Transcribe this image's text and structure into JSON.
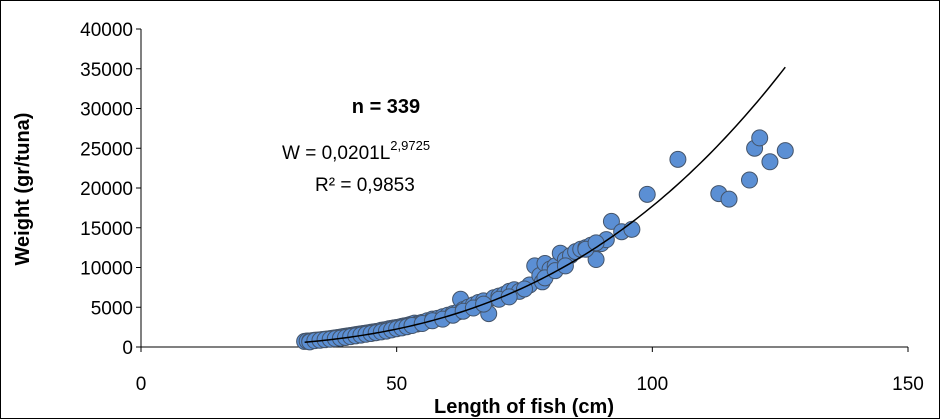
{
  "chart_data": {
    "type": "scatter",
    "xlabel": "Length of fish (cm)",
    "ylabel": "Weight (gr/tuna)",
    "xlim": [
      0,
      150
    ],
    "ylim": [
      0,
      40000
    ],
    "x_ticks": [
      "0",
      "50",
      "100",
      "150"
    ],
    "y_ticks": [
      "0",
      "5000",
      "10000",
      "15000",
      "20000",
      "25000",
      "30000",
      "35000",
      "40000"
    ],
    "grid": false,
    "legend": "none",
    "marker_color": "#5b8fd4",
    "marker_edge_color": "#44546a",
    "trendline": {
      "type": "power",
      "a": 0.0201,
      "b": 2.9725,
      "x_range": [
        32,
        126
      ],
      "color": "#000000"
    },
    "annotations": {
      "n_text": "n = 339",
      "equation_main": "W = 0,0201L",
      "equation_exponent": "2,9725",
      "r_squared": "R² = 0,9853"
    },
    "points": [
      [
        32,
        700
      ],
      [
        32.5,
        750
      ],
      [
        33,
        760
      ],
      [
        33.5,
        800
      ],
      [
        34,
        850
      ],
      [
        34.5,
        870
      ],
      [
        35,
        900
      ],
      [
        35.5,
        950
      ],
      [
        36,
        980
      ],
      [
        36.5,
        1000
      ],
      [
        37,
        1050
      ],
      [
        37.5,
        1100
      ],
      [
        38,
        1150
      ],
      [
        38.5,
        1200
      ],
      [
        39,
        1250
      ],
      [
        39.5,
        1300
      ],
      [
        40,
        1350
      ],
      [
        40.5,
        1400
      ],
      [
        41,
        1450
      ],
      [
        41.5,
        1500
      ],
      [
        42,
        1550
      ],
      [
        42.5,
        1600
      ],
      [
        43,
        1650
      ],
      [
        43.5,
        1700
      ],
      [
        44,
        1750
      ],
      [
        44.5,
        1800
      ],
      [
        45,
        1850
      ],
      [
        45.5,
        1900
      ],
      [
        46,
        1950
      ],
      [
        46.5,
        2000
      ],
      [
        47,
        2100
      ],
      [
        47.5,
        2150
      ],
      [
        48,
        2200
      ],
      [
        48.5,
        2300
      ],
      [
        49,
        2350
      ],
      [
        49.5,
        2400
      ],
      [
        50,
        2450
      ],
      [
        50.5,
        2500
      ],
      [
        51,
        2600
      ],
      [
        51.5,
        2650
      ],
      [
        52,
        2700
      ],
      [
        52.5,
        2800
      ],
      [
        53,
        2900
      ],
      [
        53.5,
        3000
      ],
      [
        54,
        2900
      ],
      [
        54.5,
        3000
      ],
      [
        55,
        3100
      ],
      [
        56,
        3300
      ],
      [
        57,
        3500
      ],
      [
        58,
        3600
      ],
      [
        59,
        3800
      ],
      [
        60,
        4000
      ],
      [
        61,
        4200
      ],
      [
        62,
        4400
      ],
      [
        62.5,
        6000
      ],
      [
        63,
        4700
      ],
      [
        64,
        5000
      ],
      [
        65,
        5300
      ],
      [
        66,
        5600
      ],
      [
        67,
        5800
      ],
      [
        68,
        4200
      ],
      [
        69,
        6200
      ],
      [
        70,
        6400
      ],
      [
        71,
        6600
      ],
      [
        72,
        7000
      ],
      [
        73,
        7200
      ],
      [
        74,
        7000
      ],
      [
        76,
        7800
      ],
      [
        77,
        10200
      ],
      [
        78,
        9000
      ],
      [
        78.5,
        8200
      ],
      [
        79,
        10500
      ],
      [
        80,
        9800
      ],
      [
        81,
        10200
      ],
      [
        82,
        11800
      ],
      [
        83,
        11000
      ],
      [
        84,
        11500
      ],
      [
        85,
        12000
      ],
      [
        86,
        12300
      ],
      [
        87,
        12500
      ],
      [
        88,
        12800
      ],
      [
        89,
        11000
      ],
      [
        90,
        13000
      ],
      [
        91,
        13500
      ],
      [
        92,
        15800
      ],
      [
        94,
        14500
      ],
      [
        96,
        14800
      ],
      [
        99,
        19200
      ],
      [
        105,
        23600
      ],
      [
        113,
        19300
      ],
      [
        115,
        18600
      ],
      [
        119,
        21000
      ],
      [
        120,
        25000
      ],
      [
        121,
        26300
      ],
      [
        123,
        23300
      ],
      [
        126,
        24700
      ],
      [
        33,
        650
      ],
      [
        34,
        800
      ],
      [
        35,
        850
      ],
      [
        36,
        920
      ],
      [
        37,
        980
      ],
      [
        38,
        1050
      ],
      [
        39,
        1100
      ],
      [
        40,
        1200
      ],
      [
        41,
        1300
      ],
      [
        42,
        1400
      ],
      [
        43,
        1500
      ],
      [
        44,
        1600
      ],
      [
        45,
        1700
      ],
      [
        46,
        1800
      ],
      [
        47,
        1900
      ],
      [
        48,
        2000
      ],
      [
        49,
        2150
      ],
      [
        50,
        2300
      ],
      [
        51,
        2400
      ],
      [
        52,
        2550
      ],
      [
        53,
        2700
      ],
      [
        55,
        2950
      ],
      [
        57,
        3300
      ],
      [
        59,
        3500
      ],
      [
        61,
        4000
      ],
      [
        63,
        4500
      ],
      [
        65,
        4900
      ],
      [
        67,
        5400
      ],
      [
        70,
        6000
      ],
      [
        72,
        6300
      ],
      [
        75,
        7300
      ],
      [
        79,
        8700
      ],
      [
        81,
        9600
      ],
      [
        83,
        10200
      ],
      [
        87,
        12300
      ],
      [
        89,
        13100
      ]
    ]
  }
}
